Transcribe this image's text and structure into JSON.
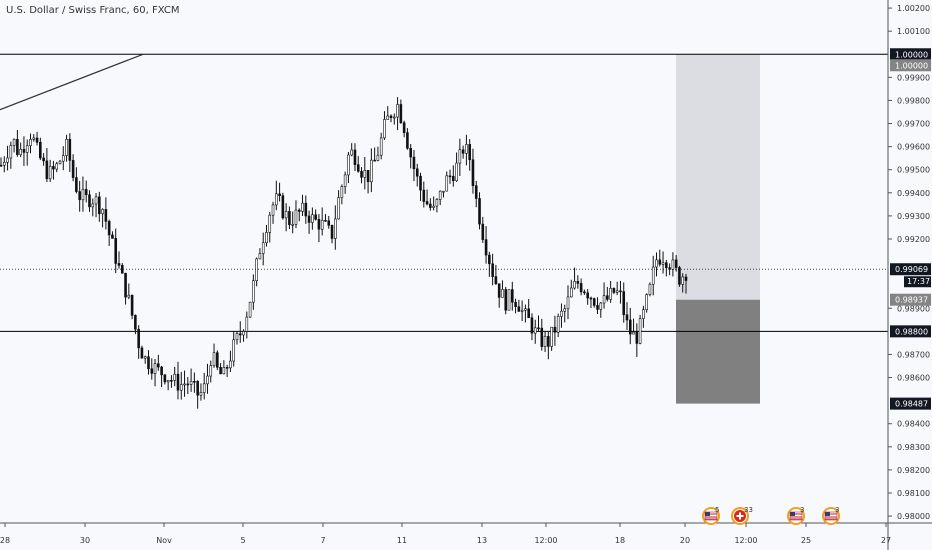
{
  "title": "U.S. Dollar / Swiss Franc, 60, FXCM",
  "chart_data": {
    "type": "candlestick",
    "title": "U.S. Dollar / Swiss Franc, 60, FXCM",
    "ylim": [
      0.9797,
      1.00235
    ],
    "yticks": [
      "1.00200",
      "1.00100",
      "0.99900",
      "0.99800",
      "0.99700",
      "0.99600",
      "0.99500",
      "0.99400",
      "0.99300",
      "0.99200",
      "0.98900",
      "0.98700",
      "0.98600",
      "0.98400",
      "0.98300",
      "0.98200",
      "0.98100",
      "0.98000"
    ],
    "xticks": [
      "28",
      "30",
      "Nov",
      "5",
      "7",
      "11",
      "13",
      "12:00",
      "18",
      "20",
      "12:00",
      "25",
      "27"
    ],
    "price_series": [
      0.9952,
      0.9958,
      0.9963,
      0.9957,
      0.9962,
      0.9966,
      0.9958,
      0.9952,
      0.9948,
      0.995,
      0.9955,
      0.996,
      0.9947,
      0.9939,
      0.9937,
      0.9938,
      0.9936,
      0.9933,
      0.9922,
      0.9913,
      0.9904,
      0.9896,
      0.9885,
      0.9874,
      0.9868,
      0.9866,
      0.9863,
      0.9862,
      0.986,
      0.9858,
      0.9857,
      0.9858,
      0.9855,
      0.9852,
      0.9856,
      0.987,
      0.9863,
      0.986,
      0.9868,
      0.9875,
      0.988,
      0.9889,
      0.99,
      0.9915,
      0.9925,
      0.9934,
      0.9937,
      0.9932,
      0.9928,
      0.993,
      0.9932,
      0.9931,
      0.9928,
      0.9927,
      0.9925,
      0.9921,
      0.9935,
      0.9946,
      0.9958,
      0.9956,
      0.995,
      0.9947,
      0.9952,
      0.996,
      0.997,
      0.9975,
      0.9978,
      0.997,
      0.9958,
      0.9948,
      0.994,
      0.9935,
      0.9932,
      0.9938,
      0.9945,
      0.9948,
      0.9952,
      0.996,
      0.9955,
      0.9938,
      0.9925,
      0.9914,
      0.9904,
      0.9897,
      0.9893,
      0.9895,
      0.9893,
      0.9887,
      0.9884,
      0.9879,
      0.9876,
      0.9875,
      0.988,
      0.9886,
      0.989,
      0.9898,
      0.9901,
      0.9899,
      0.9896,
      0.9893,
      0.9892,
      0.9894,
      0.9897,
      0.9896,
      0.9884,
      0.9878,
      0.9878,
      0.9888,
      0.9898,
      0.9911,
      0.9913,
      0.9911,
      0.9907,
      0.9903,
      0.9906
    ],
    "horizontal_levels": [
      {
        "value": 1.0,
        "label": "1.00000"
      },
      {
        "value": 0.988,
        "label": "0.98800"
      }
    ],
    "current_price": {
      "value": 0.99069,
      "label": "0.99069",
      "countdown": "17:37"
    },
    "position": {
      "entry": 0.98937,
      "entry_label": "0.98937",
      "target": 1.0,
      "target_label": "1.00000",
      "stop": 0.98487,
      "stop_label": "0.98487"
    },
    "trendline": {
      "from": 0.9976,
      "to": 1.0
    }
  },
  "events": [
    {
      "flag": "us",
      "count": "5"
    },
    {
      "flag": "ch",
      "count": "33"
    },
    {
      "flag": "us",
      "count": "3"
    },
    {
      "flag": "us",
      "count": "3"
    }
  ],
  "colors": {
    "background": "#f8f9fd",
    "candles": "#111111",
    "target_zone": "#dcdde2",
    "stop_zone": "#808080",
    "axis_text": "#333333",
    "label_dark": "#131722",
    "label_grey": "#848484"
  }
}
